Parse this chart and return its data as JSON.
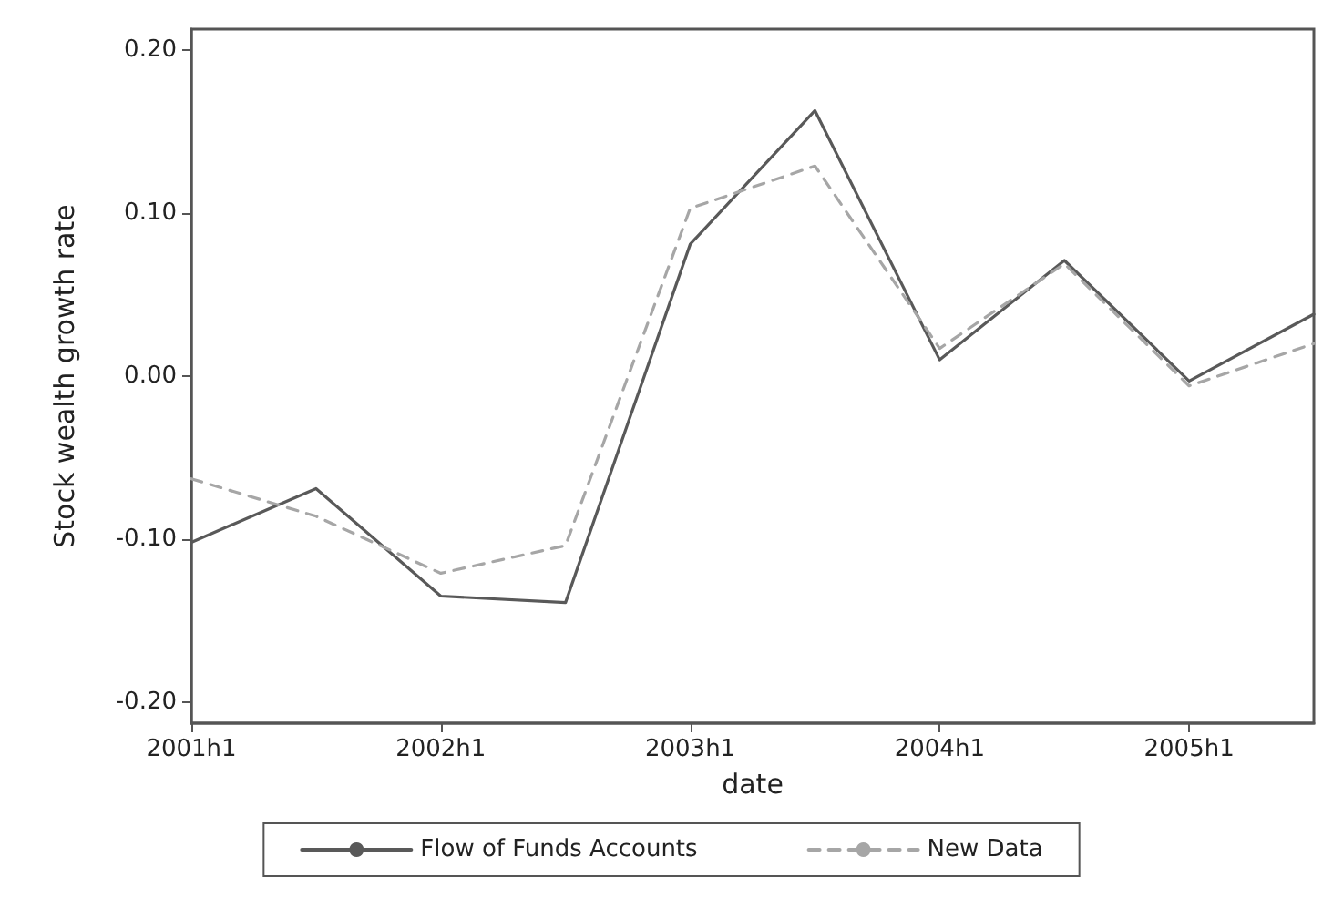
{
  "chart_data": {
    "type": "line",
    "xlabel": "date",
    "ylabel": "Stock wealth growth rate",
    "categories": [
      "2001h1",
      null,
      "2002h1",
      null,
      "2003h1",
      null,
      "2004h1",
      null,
      "2005h1",
      null
    ],
    "series": [
      {
        "name": "Flow of Funds Accounts",
        "color": "#595959",
        "line_style": "solid",
        "values": [
          -0.102,
          -0.069,
          -0.135,
          -0.139,
          0.081,
          0.163,
          0.01,
          0.071,
          -0.003,
          0.038
        ]
      },
      {
        "name": "New Data",
        "color": "#a6a6a6",
        "line_style": "dashed",
        "values": [
          -0.063,
          -0.086,
          -0.121,
          -0.104,
          0.103,
          0.129,
          0.017,
          0.069,
          -0.006,
          0.02
        ]
      }
    ],
    "ylim": [
      -0.213,
      0.213
    ],
    "yticks": [
      {
        "value": -0.2,
        "label": "-0.20"
      },
      {
        "value": -0.1,
        "label": "-0.10"
      },
      {
        "value": 0,
        "label": "0.00"
      },
      {
        "value": 0.1,
        "label": "0.10"
      },
      {
        "value": 0.2,
        "label": "0.20"
      }
    ],
    "grid": false,
    "legend": "bottom",
    "marker": "none"
  }
}
